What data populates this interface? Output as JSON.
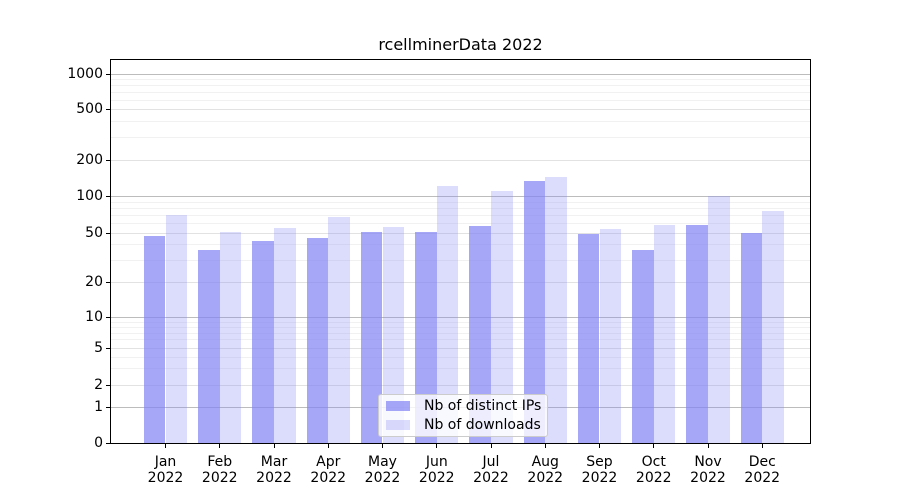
{
  "title": "rcellminerData 2022",
  "y_axis": {
    "tick_labels": [
      "0",
      "1",
      "2",
      "5",
      "10",
      "20",
      "50",
      "100",
      "200",
      "500",
      "1000"
    ]
  },
  "x_axis": {
    "months": [
      "Jan",
      "Feb",
      "Mar",
      "Apr",
      "May",
      "Jun",
      "Jul",
      "Aug",
      "Sep",
      "Oct",
      "Nov",
      "Dec"
    ],
    "year": "2022"
  },
  "legend": {
    "items": [
      {
        "label": "Nb of distinct IPs"
      },
      {
        "label": "Nb of downloads"
      }
    ]
  },
  "colors": {
    "bar_base_rgb": "133,133,245",
    "distinct_ips_alpha": 0.72,
    "downloads_alpha": 0.29,
    "distinct_ips_apparent_hex": "#a7a7f7",
    "downloads_apparent_hex": "#dcdcfc",
    "major_gridline": "#bcbcbc",
    "labeled_gridline": "#e2e2e2",
    "minor_gridline": "#f1f1f1"
  },
  "chart_data": {
    "type": "bar",
    "title": "rcellminerData 2022",
    "categories": [
      "Jan 2022",
      "Feb 2022",
      "Mar 2022",
      "Apr 2022",
      "May 2022",
      "Jun 2022",
      "Jul 2022",
      "Aug 2022",
      "Sep 2022",
      "Oct 2022",
      "Nov 2022",
      "Dec 2022"
    ],
    "series": [
      {
        "name": "Nb of distinct IPs",
        "values": [
          47,
          36,
          43,
          45,
          51,
          51,
          57,
          133,
          49,
          36,
          58,
          50
        ]
      },
      {
        "name": "Nb of downloads",
        "values": [
          70,
          51,
          55,
          67,
          56,
          121,
          110,
          143,
          53,
          58,
          100,
          75
        ]
      }
    ],
    "xlabel": "",
    "ylabel": "",
    "y_ticks": [
      0,
      1,
      2,
      5,
      10,
      20,
      50,
      100,
      200,
      500,
      1000
    ],
    "yscale": "log-like above 1 with compressed linear region down to 0",
    "ylim": [
      0,
      1500
    ],
    "grid": true,
    "legend_position": "lower center"
  }
}
